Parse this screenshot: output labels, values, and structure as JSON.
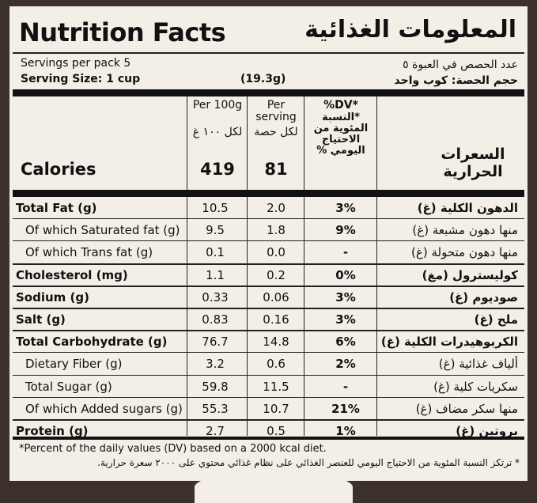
{
  "title_en": "Nutrition Facts",
  "title_ar": "المعلومات الغذائية",
  "servings_en": "Servings per pack 5",
  "servings_ar": "عدد الحصص في العبوة ٥",
  "serving_size_en": "Serving Size: 1 cup",
  "serving_size_weight": "(19.3g)",
  "serving_size_ar": "حجم الحصة: كوب واحد",
  "col_per100_en": "Per 100g",
  "col_per100_ar": "لكل ١٠٠ غ",
  "col_serving_en": "Per serving",
  "col_serving_ar": "لكل حصة",
  "col_dv_en": "%DV*",
  "col_dv_ar": "*النسبة المئوية من الاحتياج اليومي %",
  "calories": {
    "en": "Calories",
    "per100": "419",
    "serving": "81",
    "ar": "السعرات الحرارية"
  },
  "rows": [
    {
      "en": "Total Fat (g)",
      "per100": "10.5",
      "serving": "2.0",
      "dv": "3%",
      "ar": "الدهون الكلية (غ)",
      "bold": true
    },
    {
      "en": "Of which Saturated fat (g)",
      "per100": "9.5",
      "serving": "1.8",
      "dv": "9%",
      "ar": "منها دهون مشبعة (غ)",
      "bold": false
    },
    {
      "en": "Of which Trans fat (g)",
      "per100": "0.1",
      "serving": "0.0",
      "dv": "-",
      "ar": "منها دهون متحولة (غ)",
      "bold": false
    },
    {
      "en": "Cholesterol (mg)",
      "per100": "1.1",
      "serving": "0.2",
      "dv": "0%",
      "ar": "كوليسترول (مغ)",
      "bold": true
    },
    {
      "en": "Sodium (g)",
      "per100": "0.33",
      "serving": "0.06",
      "dv": "3%",
      "ar": "صوديوم (غ)",
      "bold": true
    },
    {
      "en": "Salt (g)",
      "per100": "0.83",
      "serving": "0.16",
      "dv": "3%",
      "ar": "ملح (غ)",
      "bold": true
    },
    {
      "en": "Total Carbohydrate (g)",
      "per100": "76.7",
      "serving": "14.8",
      "dv": "6%",
      "ar": "الكربوهيدرات الكلية (غ)",
      "bold": true
    },
    {
      "en": "Dietary Fiber (g)",
      "per100": "3.2",
      "serving": "0.6",
      "dv": "2%",
      "ar": "ألياف غذائية (غ)",
      "bold": false
    },
    {
      "en": "Total Sugar (g)",
      "per100": "59.8",
      "serving": "11.5",
      "dv": "-",
      "ar": "سكريات كلية (غ)",
      "bold": false
    },
    {
      "en": "Of which Added sugars (g)",
      "per100": "55.3",
      "serving": "10.7",
      "dv": "21%",
      "ar": "منها سكر مضاف (غ)",
      "bold": false
    },
    {
      "en": "Protein (g)",
      "per100": "2.7",
      "serving": "0.5",
      "dv": "1%",
      "ar": "بروتين (غ)",
      "bold": true
    }
  ],
  "footnote_en": "*Percent of the daily values (DV) based on a 2000 kcal diet.",
  "footnote_ar": "* ترتكز النسبة المئوية من الاحتياج اليومي للعنصر الغذائي على نظام غذائي محتوي على ٢٠٠٠ سعرة حرارية."
}
